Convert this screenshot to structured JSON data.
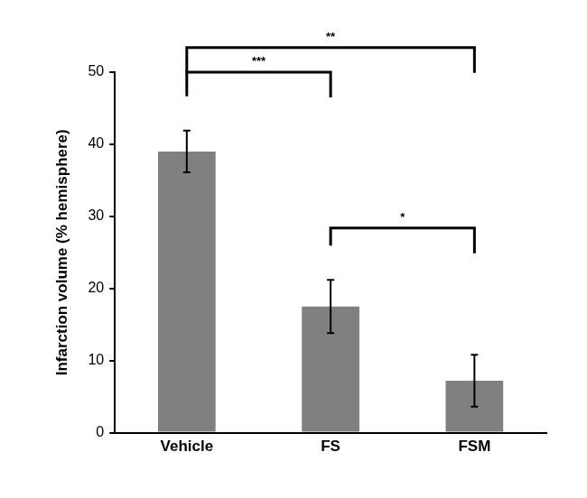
{
  "chart_data": {
    "type": "bar",
    "y_label": "Infarction volume (% hemisphere)",
    "categories": [
      "Vehicle",
      "FS",
      "FSM"
    ],
    "values": [
      39,
      17.5,
      7.2
    ],
    "errors": [
      2.9,
      3.7,
      3.6
    ],
    "color": "#808080",
    "ylim": [
      0,
      50
    ],
    "yticks": [
      0,
      10,
      20,
      30,
      40,
      50
    ],
    "grid": false,
    "annotations": [
      {
        "text": "***",
        "from": "Vehicle",
        "to": "FS",
        "y": 50
      },
      {
        "text": "**",
        "from": "Vehicle",
        "to": "FSM",
        "y": 53.4
      },
      {
        "text": "*",
        "from": "FS",
        "to": "FSM",
        "y": 28.4
      }
    ]
  }
}
